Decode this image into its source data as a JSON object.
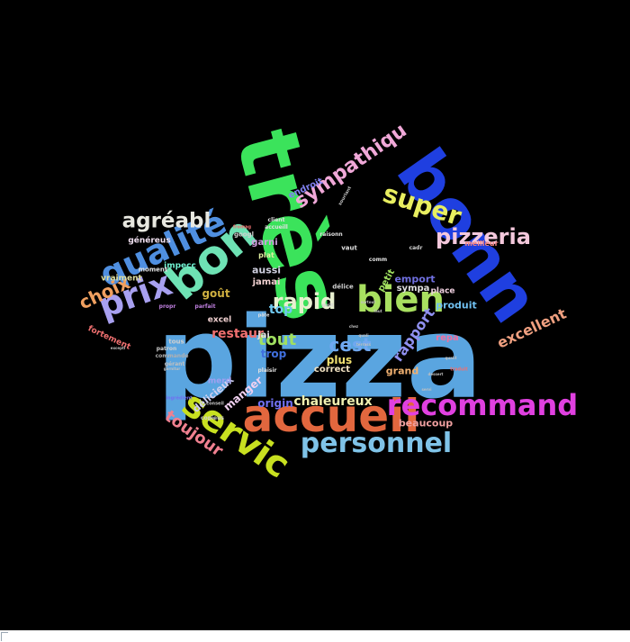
{
  "canvas": {
    "background": "#000000"
  },
  "words": [
    {
      "text": "pizza",
      "color": "#5AA5E0"
    },
    {
      "text": "très",
      "color": "#3BE35B"
    },
    {
      "text": "bonn",
      "color": "#1F3FE0"
    },
    {
      "text": "accueil",
      "color": "#E2673E"
    },
    {
      "text": "bon",
      "color": "#6EE2B4"
    },
    {
      "text": "recommand",
      "color": "#E040E0"
    },
    {
      "text": "personnel",
      "color": "#7FC3E8"
    },
    {
      "text": "servic",
      "color": "#C8E020"
    },
    {
      "text": "qualité",
      "color": "#4F8FE0"
    },
    {
      "text": "bien",
      "color": "#A8E060"
    },
    {
      "text": "pizzeria",
      "color": "#F4C8DC"
    },
    {
      "text": "prix",
      "color": "#A8A0F0"
    },
    {
      "text": "super",
      "color": "#E8EE60"
    },
    {
      "text": "agréabl",
      "color": "#E8E8E0"
    },
    {
      "text": "sympathiqu",
      "color": "#F0A8D8"
    },
    {
      "text": "rapid",
      "color": "#E8F0D0"
    },
    {
      "text": "toujour",
      "color": "#F08090"
    },
    {
      "text": "choix",
      "color": "#F0A060"
    },
    {
      "text": "excellent",
      "color": "#F0A080"
    },
    {
      "text": "cest",
      "color": "#70A8F0"
    },
    {
      "text": "tout",
      "color": "#A0E060"
    },
    {
      "text": "chaleureux",
      "color": "#F0F0B0"
    },
    {
      "text": "rapport",
      "color": "#9090F0"
    },
    {
      "text": "top",
      "color": "#70C8F0"
    },
    {
      "text": "restaur",
      "color": "#F07070"
    },
    {
      "text": "goût",
      "color": "#D0B040"
    },
    {
      "text": "origin",
      "color": "#7070F0"
    },
    {
      "text": "trop",
      "color": "#4070E0"
    },
    {
      "text": "plus",
      "color": "#F0E070"
    },
    {
      "text": "manger",
      "color": "#F0D0F0"
    },
    {
      "text": "délicieux",
      "color": "#D0D0F0"
    },
    {
      "text": "grand",
      "color": "#F0B070"
    },
    {
      "text": "beaucoup",
      "color": "#F0A0A0"
    },
    {
      "text": "correct",
      "color": "#F0E0C0"
    },
    {
      "text": "produit",
      "color": "#70C0F0"
    },
    {
      "text": "emport",
      "color": "#7070E0"
    },
    {
      "text": "sympa",
      "color": "#E0E0E0"
    },
    {
      "text": "aussi",
      "color": "#D0D0E0"
    },
    {
      "text": "jamai",
      "color": "#F0D0D0"
    },
    {
      "text": "garni",
      "color": "#D0A0E0"
    },
    {
      "text": "jai",
      "color": "#E0E0E0"
    },
    {
      "text": "petit",
      "color": "#A0E060"
    },
    {
      "text": "place",
      "color": "#F0D0E0"
    },
    {
      "text": "repa",
      "color": "#F070A0"
    },
    {
      "text": "impecc",
      "color": "#70F0D0"
    },
    {
      "text": "vraiment",
      "color": "#E0E0A0"
    },
    {
      "text": "généreus",
      "color": "#F0E0F0"
    },
    {
      "text": "endroit",
      "color": "#8080F0"
    },
    {
      "text": "fortement",
      "color": "#F07070"
    },
    {
      "text": "excel",
      "color": "#F0D0D0"
    },
    {
      "text": "merd",
      "color": "#A0A0F0"
    },
    {
      "text": "meilleur",
      "color": "#F08080"
    },
    {
      "text": "moment",
      "color": "#E0E0E0"
    },
    {
      "text": "googl",
      "color": "#D0D0D0"
    },
    {
      "text": "plat",
      "color": "#E0F0A0"
    },
    {
      "text": "tous",
      "color": "#D0D0D0"
    },
    {
      "text": "délice",
      "color": "#D0D0D0"
    },
    {
      "text": "commande",
      "color": "#B0B0B0"
    },
    {
      "text": "patron",
      "color": "#D0D0D0"
    },
    {
      "text": "gérant",
      "color": "#C0C0C0"
    },
    {
      "text": "client",
      "color": "#E0E0E0"
    },
    {
      "text": "vaut",
      "color": "#E0E0E0"
    },
    {
      "text": "comm",
      "color": "#E0E0E0"
    },
    {
      "text": "parfait",
      "color": "#C080E0"
    },
    {
      "text": "propr",
      "color": "#C080E0"
    },
    {
      "text": "copieus",
      "color": "#D0D0D0"
    },
    {
      "text": "cadr",
      "color": "#D0D0D0"
    },
    {
      "text": "raisonn",
      "color": "#E0E0E0"
    },
    {
      "text": "accueill",
      "color": "#E0E0E0"
    },
    {
      "text": "plaisir",
      "color": "#E0E0E0"
    },
    {
      "text": "fromag",
      "color": "#F07070"
    },
    {
      "text": "traduit",
      "color": "#F07070"
    },
    {
      "text": "ingrédient",
      "color": "#7070F0"
    },
    {
      "text": "pâte",
      "color": "#E0E0E0"
    },
    {
      "text": "conseil",
      "color": "#C0C0C0"
    },
    {
      "text": "souriant",
      "color": "#C0C0C0"
    },
    {
      "text": "goût",
      "color": "#D0D0D0"
    },
    {
      "text": "excepti",
      "color": "#C0C0C0"
    },
    {
      "text": "dessert",
      "color": "#C0C0C0"
    },
    {
      "text": "qualit",
      "color": "#C0C0C0"
    },
    {
      "text": "servi",
      "color": "#C0C0C0"
    },
    {
      "text": "surtout",
      "color": "#C0C0C0"
    },
    {
      "text": "faut",
      "color": "#C0C0C0"
    },
    {
      "text": "quali",
      "color": "#C0C0C0"
    },
    {
      "text": "terrass",
      "color": "#C0C0C0"
    },
    {
      "text": "chez",
      "color": "#C0C0C0"
    },
    {
      "text": "garnitur",
      "color": "#C0C0C0"
    }
  ]
}
